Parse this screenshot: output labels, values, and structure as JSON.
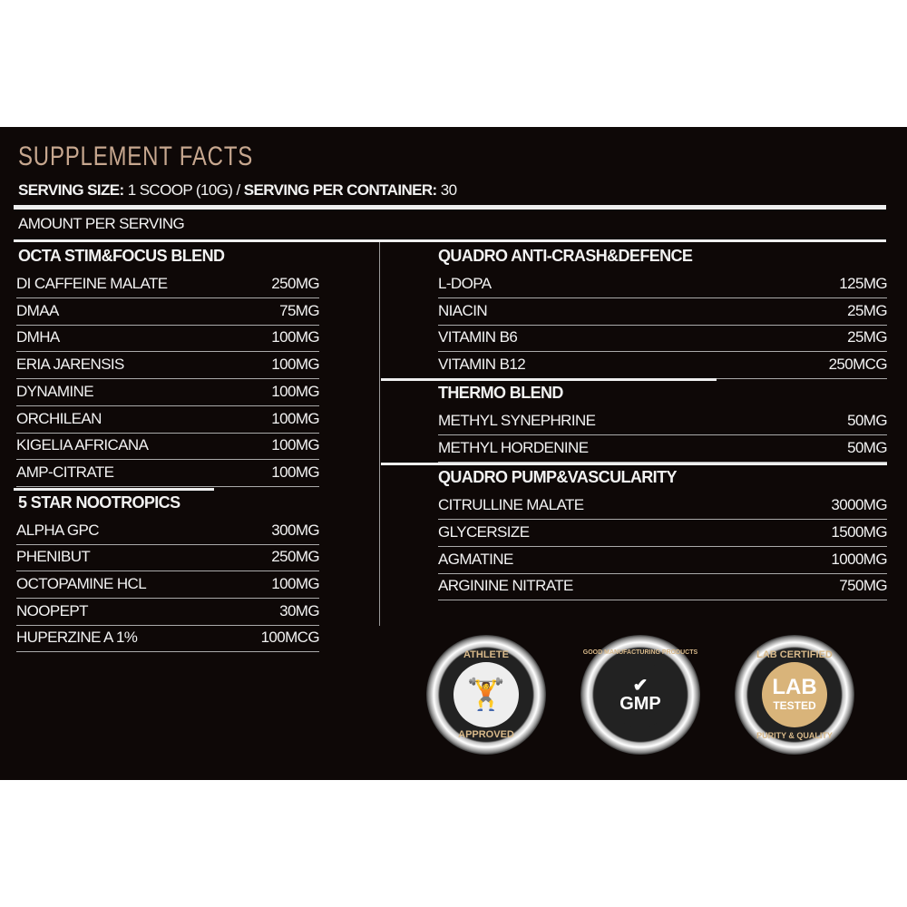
{
  "title": "SUPPLEMENT FACTS",
  "serving": {
    "size_label": "SERVING SIZE:",
    "size_value": "1 SCOOP (10G) /",
    "container_label": "SERVING PER CONTAINER:",
    "container_value": "30"
  },
  "amount_per_serving": "AMOUNT PER SERVING",
  "left": [
    {
      "header": "OCTA STIM&FOCUS BLEND",
      "items": [
        [
          "DI CAFFEINE MALATE",
          "250MG"
        ],
        [
          "DMAA",
          "75MG"
        ],
        [
          "DMHA",
          "100MG"
        ],
        [
          "ERIA JARENSIS",
          "100MG"
        ],
        [
          "DYNAMINE",
          "100MG"
        ],
        [
          "ORCHILEAN",
          "100MG"
        ],
        [
          "KIGELIA AFRICANA",
          "100MG"
        ],
        [
          "AMP-CITRATE",
          "100MG"
        ]
      ]
    },
    {
      "header": "5 STAR NOOTROPICS",
      "items": [
        [
          "ALPHA GPC",
          "300MG"
        ],
        [
          "PHENIBUT",
          "250MG"
        ],
        [
          "OCTOPAMINE HCL",
          "100MG"
        ],
        [
          "NOOPEPT",
          "30MG"
        ],
        [
          "HUPERZINE A 1%",
          "100MCG"
        ]
      ]
    }
  ],
  "right": [
    {
      "header": "QUADRO  ANTI-CRASH&DEFENCE",
      "items": [
        [
          "L-DOPA",
          "125MG"
        ],
        [
          "NIACIN",
          "25MG"
        ],
        [
          "VITAMIN B6",
          "25MG"
        ],
        [
          "VITAMIN B12",
          "250MCG"
        ]
      ]
    },
    {
      "header": "THERMO BLEND",
      "items": [
        [
          "METHYL SYNEPHRINE",
          "50MG"
        ],
        [
          "METHYL HORDENINE",
          "50MG"
        ]
      ]
    },
    {
      "header": "QUADRO PUMP&VASCULARITY",
      "items": [
        [
          "CITRULLINE MALATE",
          "3000MG"
        ],
        [
          "GLYCERSIZE",
          "1500MG"
        ],
        [
          "AGMATINE",
          "1000MG"
        ],
        [
          "ARGININE NITRATE",
          "750MG"
        ]
      ]
    }
  ],
  "badges": [
    {
      "top": "ATHLETE",
      "center": "",
      "bottom": "APPROVED",
      "icon": "weightlifter-icon"
    },
    {
      "top": "GOOD MANUFACTURING PRODUCTS",
      "center": "GMP",
      "bottom": "",
      "icon": "checkmark-icon"
    },
    {
      "top": "LAB CERTIFIED",
      "center": "LAB",
      "center2": "TESTED",
      "bottom": "PURITY & QUALITY",
      "icon": "star-icon"
    }
  ],
  "colors": {
    "background": "#0e0807",
    "title": "#c7a78f",
    "gold": "#d8b98a"
  }
}
